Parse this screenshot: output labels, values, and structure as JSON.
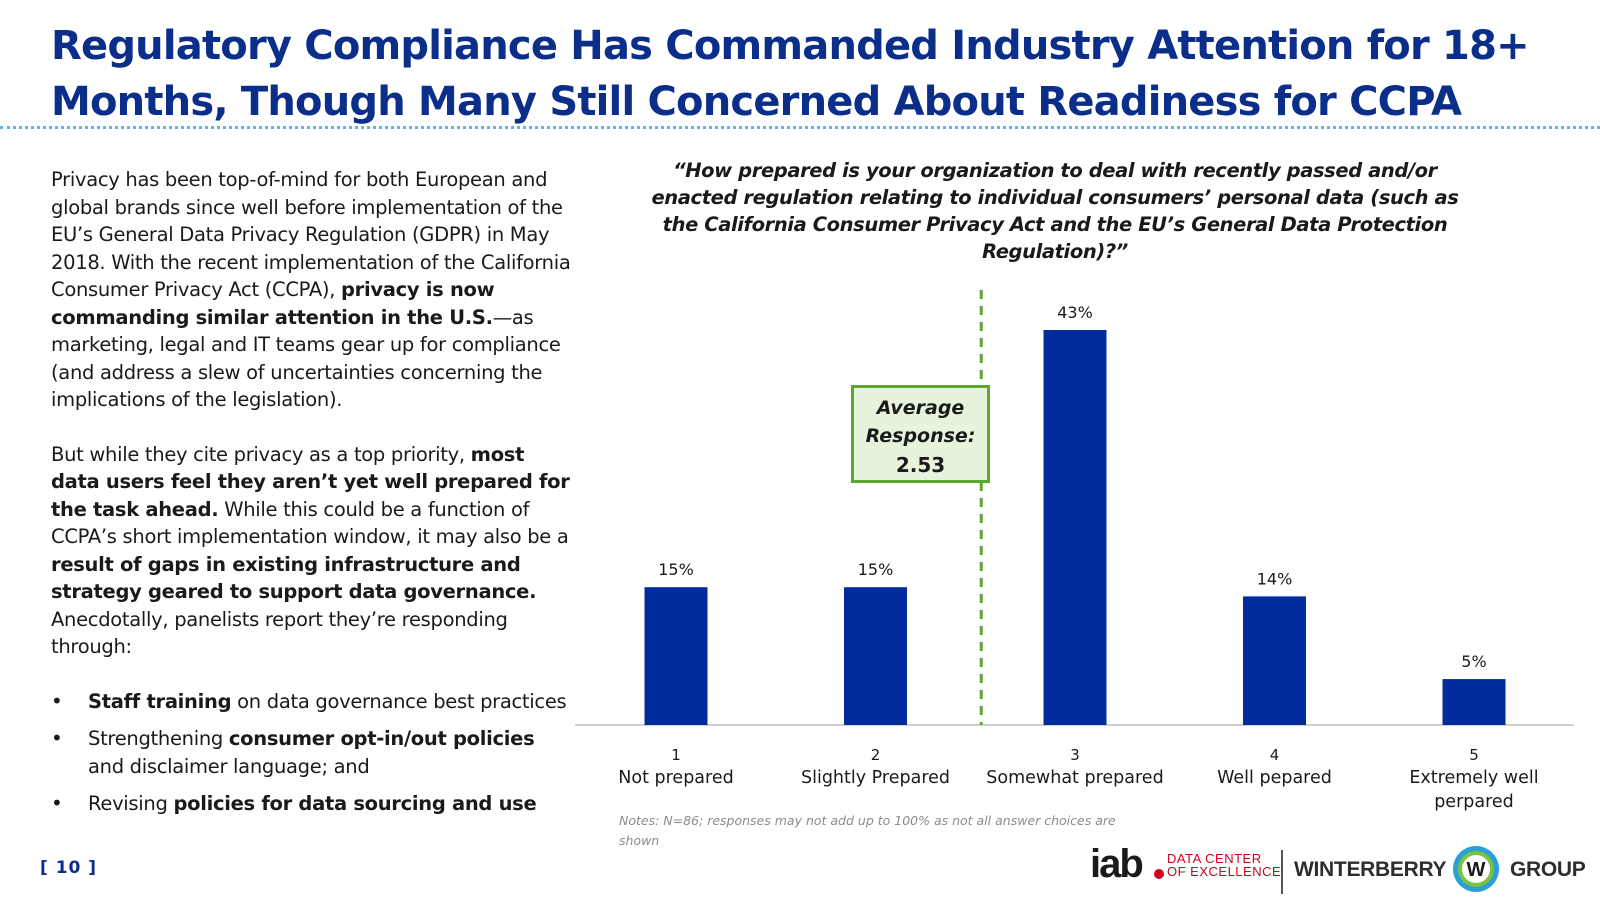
{
  "title": "Regulatory Compliance Has Commanded Industry Attention for 18+ Months, Though Many Still Concerned About Readiness for CCPA",
  "body": {
    "p1_a": "Privacy has been top-of-mind for both European and global brands since well before implementation of the EU’s General Data Privacy Regulation (GDPR) in May 2018. With the recent implementation of the California Consumer Privacy Act (CCPA), ",
    "p1_b": "privacy is now commanding similar attention in the U.S.",
    "p1_c": "—as marketing, legal and IT teams gear up for compliance (and address a slew of uncertainties concerning the implications of the legislation).",
    "p2_a": "But while they cite privacy as a top priority, ",
    "p2_b": "most data users feel they aren’t yet well prepared for the task ahead.",
    "p2_c": " While this could be a function of CCPA’s short implementation window, it may also be a ",
    "p2_d": "result of gaps in existing infrastructure and strategy geared to support data governance.",
    "p2_e": " Anecdotally, panelists report they’re responding through:",
    "bullets": [
      {
        "bold": "Staff training",
        "rest": " on data governance best practices"
      },
      {
        "pre": "Strengthening ",
        "bold": "consumer opt-in/out policies",
        "rest": " and disclaimer language; and"
      },
      {
        "pre": "Revising ",
        "bold": "policies for data sourcing and use"
      }
    ]
  },
  "chart_data": {
    "type": "bar",
    "title": "“How prepared is your organization to deal with recently passed and/or enacted regulation relating to individual consumers’ personal data (such as the California Consumer Privacy Act and the EU’s General Data Protection Regulation)?”",
    "categories": [
      {
        "num": "1",
        "label": [
          "Not prepared"
        ]
      },
      {
        "num": "2",
        "label": [
          "Slightly Prepared"
        ]
      },
      {
        "num": "3",
        "label": [
          "Somewhat prepared"
        ]
      },
      {
        "num": "4",
        "label": [
          "Well pepared"
        ]
      },
      {
        "num": "5",
        "label": [
          "Extremely well",
          "perpared"
        ]
      }
    ],
    "values": [
      15,
      15,
      43,
      14,
      5
    ],
    "value_labels": [
      "15%",
      "15%",
      "43%",
      "14%",
      "5%"
    ],
    "ylim": [
      0,
      43
    ],
    "average": 2.53,
    "average_label_1": "Average",
    "average_label_2": "Response:",
    "average_value": "2.53",
    "bar_color": "#002d9b",
    "avg_line_color": "#5aa832"
  },
  "notes": "Notes: N=86; responses may not add up to 100% as not all answer choices are shown",
  "page_number": "[ 10 ]",
  "logos": {
    "iab_word": "iab",
    "iab_sub_1": "DATA CENTER",
    "iab_sub_2": "OF EXCELLENCE",
    "wb_left": "WINTERBERRY",
    "wb_mid": "W",
    "wb_right": "GROUP"
  }
}
